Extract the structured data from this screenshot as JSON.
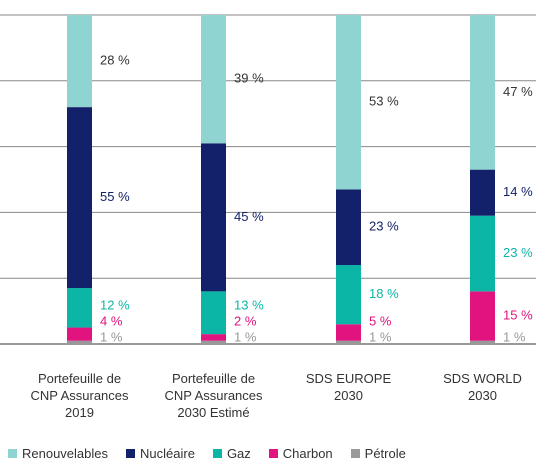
{
  "chart_data": {
    "type": "stacked_bar",
    "categories": [
      "Portefeuille de\nCNP Assurances\n2019",
      "Portefeuille de\nCNP Assurances\n2030 Estimé",
      "SDS EUROPE\n2030",
      "SDS WORLD\n2030"
    ],
    "series": [
      {
        "name": "Renouvelables",
        "color": "#8fd4d1",
        "label_color": "#333333",
        "values": [
          28,
          39,
          53,
          47
        ],
        "value_labels": [
          "28 %",
          "39 %",
          "53 %",
          "47 %"
        ]
      },
      {
        "name": "Nucléaire",
        "color": "#13216a",
        "label_color": "#13216a",
        "values": [
          55,
          45,
          23,
          14
        ],
        "value_labels": [
          "55 %",
          "45 %",
          "23 %",
          "14 %"
        ]
      },
      {
        "name": "Gaz",
        "color": "#0cb6a6",
        "label_color": "#0cb6a6",
        "values": [
          12,
          13,
          18,
          23
        ],
        "value_labels": [
          "12 %",
          "13 %",
          "18 %",
          "23 %"
        ]
      },
      {
        "name": "Charbon",
        "color": "#e0137f",
        "label_color": "#e0137f",
        "values": [
          4,
          2,
          5,
          15
        ],
        "value_labels": [
          "4 %",
          "2 %",
          "5 %",
          "15 %"
        ]
      },
      {
        "name": "Pétrole",
        "color": "#999999",
        "label_color": "#999999",
        "values": [
          1,
          1,
          1,
          1
        ],
        "value_labels": [
          "1 %",
          "1 %",
          "1 %",
          "1 %"
        ]
      }
    ],
    "ylim": [
      0,
      100
    ],
    "yticks": [
      0,
      20,
      40,
      60,
      80,
      100
    ],
    "grid": true
  }
}
